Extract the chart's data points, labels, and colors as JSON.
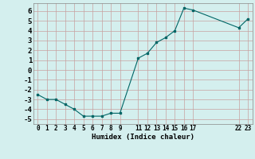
{
  "x": [
    0,
    1,
    2,
    3,
    4,
    5,
    6,
    7,
    8,
    9,
    11,
    12,
    13,
    14,
    15,
    16,
    17,
    22,
    23
  ],
  "y": [
    -2.5,
    -3.0,
    -3.0,
    -3.5,
    -4.0,
    -4.7,
    -4.7,
    -4.7,
    -4.4,
    -4.4,
    1.2,
    1.7,
    2.8,
    3.3,
    4.0,
    6.3,
    6.1,
    4.3,
    5.2
  ],
  "xticks": [
    0,
    1,
    2,
    3,
    4,
    5,
    6,
    7,
    8,
    9,
    11,
    12,
    13,
    14,
    15,
    16,
    17,
    22,
    23
  ],
  "xtick_labels": [
    "0",
    "1",
    "2",
    "3",
    "4",
    "5",
    "6",
    "7",
    "8",
    "9",
    "11",
    "12",
    "13",
    "14",
    "15",
    "16",
    "17",
    "22",
    "23"
  ],
  "yticks": [
    -5,
    -4,
    -3,
    -2,
    -1,
    0,
    1,
    2,
    3,
    4,
    5,
    6
  ],
  "xlim": [
    -0.5,
    23.5
  ],
  "ylim": [
    -5.5,
    6.8
  ],
  "xlabel": "Humidex (Indice chaleur)",
  "line_color": "#006666",
  "marker_color": "#006666",
  "bg_color": "#d4efee",
  "grid_major_color": "#c8a0a0",
  "grid_minor_color": "#ddc8c8"
}
